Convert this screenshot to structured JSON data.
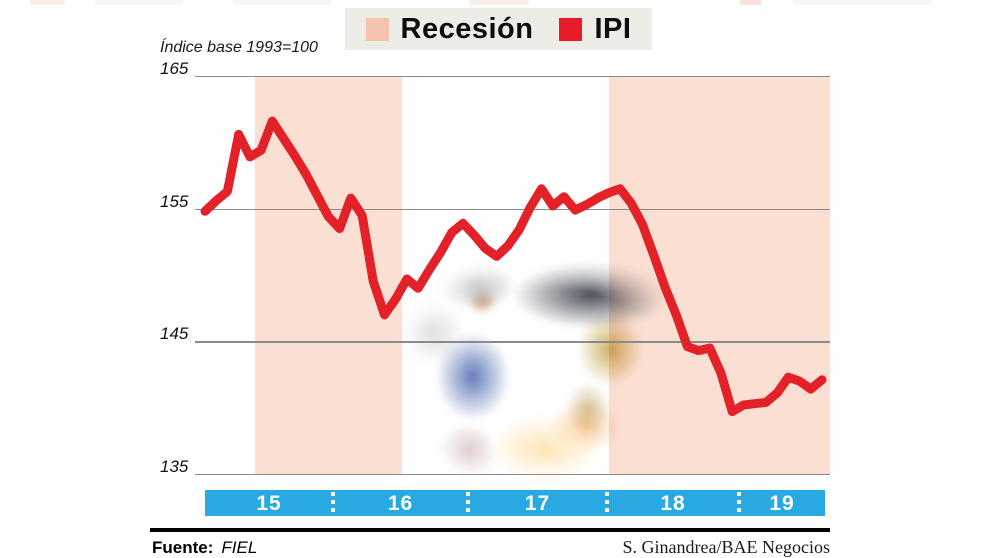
{
  "header": {
    "index_label": "Índice base 1993=100"
  },
  "legend": {
    "items": [
      {
        "label": "Recesión",
        "color": "#f6c3ac"
      },
      {
        "label": "IPI",
        "color": "#e81c2b"
      }
    ]
  },
  "chart_data": {
    "type": "line",
    "title": "",
    "ylabel": "Índice base 1993=100",
    "ylim": [
      135,
      165
    ],
    "yticks": [
      165,
      155,
      145,
      135
    ],
    "grid": true,
    "legend_position": "top",
    "x_years": [
      "15",
      "16",
      "17",
      "18",
      "19"
    ],
    "x_frequency": "monthly",
    "x_start": "2015-01",
    "x_end": "2019-08",
    "series": [
      {
        "name": "IPI",
        "color": "#e32128",
        "values": [
          154.8,
          155.6,
          156.3,
          160.6,
          158.9,
          159.4,
          161.6,
          160.3,
          159.0,
          157.6,
          156.0,
          154.4,
          153.5,
          155.8,
          154.5,
          149.5,
          147.0,
          148.2,
          149.7,
          149.0,
          150.4,
          151.7,
          153.2,
          153.9,
          153.0,
          152.0,
          151.4,
          152.2,
          153.4,
          155.1,
          156.5,
          155.2,
          155.9,
          154.9,
          155.3,
          155.8,
          156.2,
          156.5,
          155.4,
          153.8,
          151.5,
          149.1,
          147.0,
          144.6,
          144.3,
          144.5,
          142.6,
          139.7,
          140.2,
          140.3,
          140.4,
          141.1,
          142.3,
          142.0,
          141.4,
          142.1
        ]
      }
    ],
    "recession_bands": [
      {
        "label": "Recesión",
        "start": "2015-05",
        "end": "2016-06",
        "start_index": 4.5,
        "end_index": 17.6
      },
      {
        "label": "Recesión",
        "start": "2018-01",
        "end": "2019-08",
        "start_index": 36.0,
        "end_index": 55.7
      }
    ]
  },
  "footer": {
    "source_label": "Fuente:",
    "source_value": "FIEL",
    "credit": "S. Ginandrea/BAE Negocios"
  }
}
